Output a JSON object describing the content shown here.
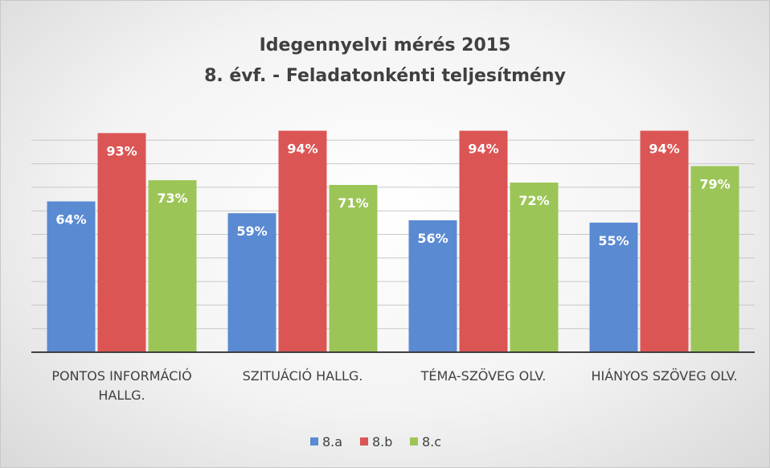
{
  "chart_data": {
    "type": "bar",
    "title": "Idegennyelvi mérés 2015",
    "subtitle": "8. évf. - Feladatonkénti teljesítmény",
    "categories": [
      "PONTOS INFORMÁCIÓ HALLG.",
      "SZITUÁCIÓ HALLG.",
      "TÉMA-SZÖVEG OLV.",
      "HIÁNYOS SZÖVEG OLV."
    ],
    "series": [
      {
        "name": "8.a",
        "color": "#5a8ad2",
        "values": [
          64,
          59,
          56,
          55
        ],
        "value_labels": [
          "64%",
          "59%",
          "56%",
          "55%"
        ]
      },
      {
        "name": "8.b",
        "color": "#dc5555",
        "values": [
          93,
          94,
          94,
          94
        ],
        "value_labels": [
          "93%",
          "94%",
          "94%",
          "94%"
        ]
      },
      {
        "name": "8.c",
        "color": "#9cc557",
        "values": [
          73,
          71,
          72,
          79
        ],
        "value_labels": [
          "73%",
          "71%",
          "72%",
          "79%"
        ]
      }
    ],
    "ylim": [
      0,
      100
    ],
    "yticks": [
      0,
      10,
      20,
      30,
      40,
      50,
      60,
      70,
      80,
      90
    ],
    "grid": true,
    "legend": "bottom"
  }
}
